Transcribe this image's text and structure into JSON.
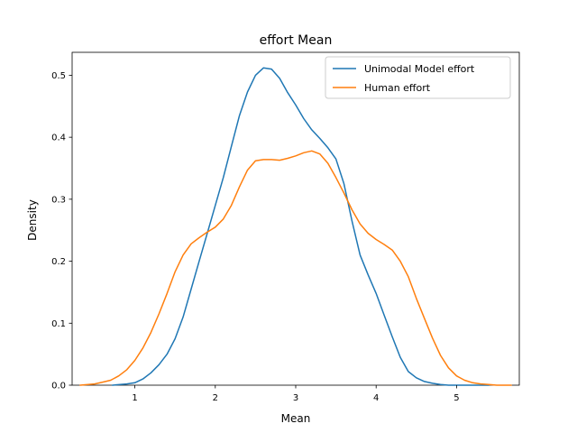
{
  "chart_data": {
    "type": "line",
    "title": "effort Mean",
    "xlabel": "Mean",
    "ylabel": "Density",
    "xlim": [
      0.22,
      5.78
    ],
    "ylim": [
      0,
      0.537
    ],
    "x_ticks": [
      1,
      2,
      3,
      4,
      5
    ],
    "y_ticks": [
      0.0,
      0.1,
      0.2,
      0.3,
      0.4,
      0.5
    ],
    "grid": false,
    "legend_position": "top-right",
    "series": [
      {
        "name": "Unimodal Model effort",
        "color": "#1f77b4",
        "x": [
          0.72,
          0.9,
          1.0,
          1.1,
          1.2,
          1.3,
          1.4,
          1.5,
          1.6,
          1.7,
          1.8,
          1.9,
          2.0,
          2.1,
          2.2,
          2.3,
          2.4,
          2.5,
          2.6,
          2.7,
          2.8,
          2.9,
          3.0,
          3.1,
          3.2,
          3.3,
          3.4,
          3.5,
          3.6,
          3.7,
          3.8,
          3.9,
          4.0,
          4.1,
          4.2,
          4.3,
          4.4,
          4.5,
          4.6,
          4.7,
          4.8,
          4.9,
          5.0,
          5.1,
          5.2,
          5.3,
          5.4
        ],
        "y": [
          0.0,
          0.002,
          0.004,
          0.01,
          0.02,
          0.033,
          0.05,
          0.075,
          0.11,
          0.155,
          0.2,
          0.245,
          0.29,
          0.335,
          0.385,
          0.435,
          0.473,
          0.5,
          0.512,
          0.51,
          0.495,
          0.472,
          0.452,
          0.43,
          0.412,
          0.398,
          0.383,
          0.365,
          0.325,
          0.265,
          0.21,
          0.178,
          0.148,
          0.113,
          0.078,
          0.045,
          0.022,
          0.012,
          0.006,
          0.003,
          0.001,
          0.0,
          0.0,
          0.0,
          0.0,
          0.0,
          0.0
        ]
      },
      {
        "name": "Human effort",
        "color": "#ff7f0e",
        "x": [
          0.32,
          0.5,
          0.6,
          0.7,
          0.8,
          0.9,
          1.0,
          1.1,
          1.2,
          1.3,
          1.4,
          1.5,
          1.6,
          1.7,
          1.8,
          1.9,
          2.0,
          2.1,
          2.2,
          2.3,
          2.4,
          2.5,
          2.6,
          2.7,
          2.8,
          2.9,
          3.0,
          3.1,
          3.2,
          3.3,
          3.4,
          3.5,
          3.6,
          3.7,
          3.8,
          3.9,
          4.0,
          4.1,
          4.2,
          4.3,
          4.4,
          4.5,
          4.6,
          4.7,
          4.8,
          4.9,
          5.0,
          5.1,
          5.2,
          5.3,
          5.4,
          5.5,
          5.68
        ],
        "y": [
          0.0,
          0.002,
          0.005,
          0.008,
          0.015,
          0.025,
          0.04,
          0.06,
          0.085,
          0.115,
          0.148,
          0.183,
          0.21,
          0.228,
          0.238,
          0.247,
          0.255,
          0.268,
          0.29,
          0.32,
          0.347,
          0.362,
          0.364,
          0.364,
          0.363,
          0.366,
          0.37,
          0.375,
          0.378,
          0.373,
          0.358,
          0.335,
          0.31,
          0.283,
          0.26,
          0.245,
          0.235,
          0.227,
          0.218,
          0.2,
          0.175,
          0.14,
          0.108,
          0.076,
          0.048,
          0.028,
          0.015,
          0.008,
          0.004,
          0.002,
          0.001,
          0.0,
          0.0
        ]
      }
    ]
  }
}
